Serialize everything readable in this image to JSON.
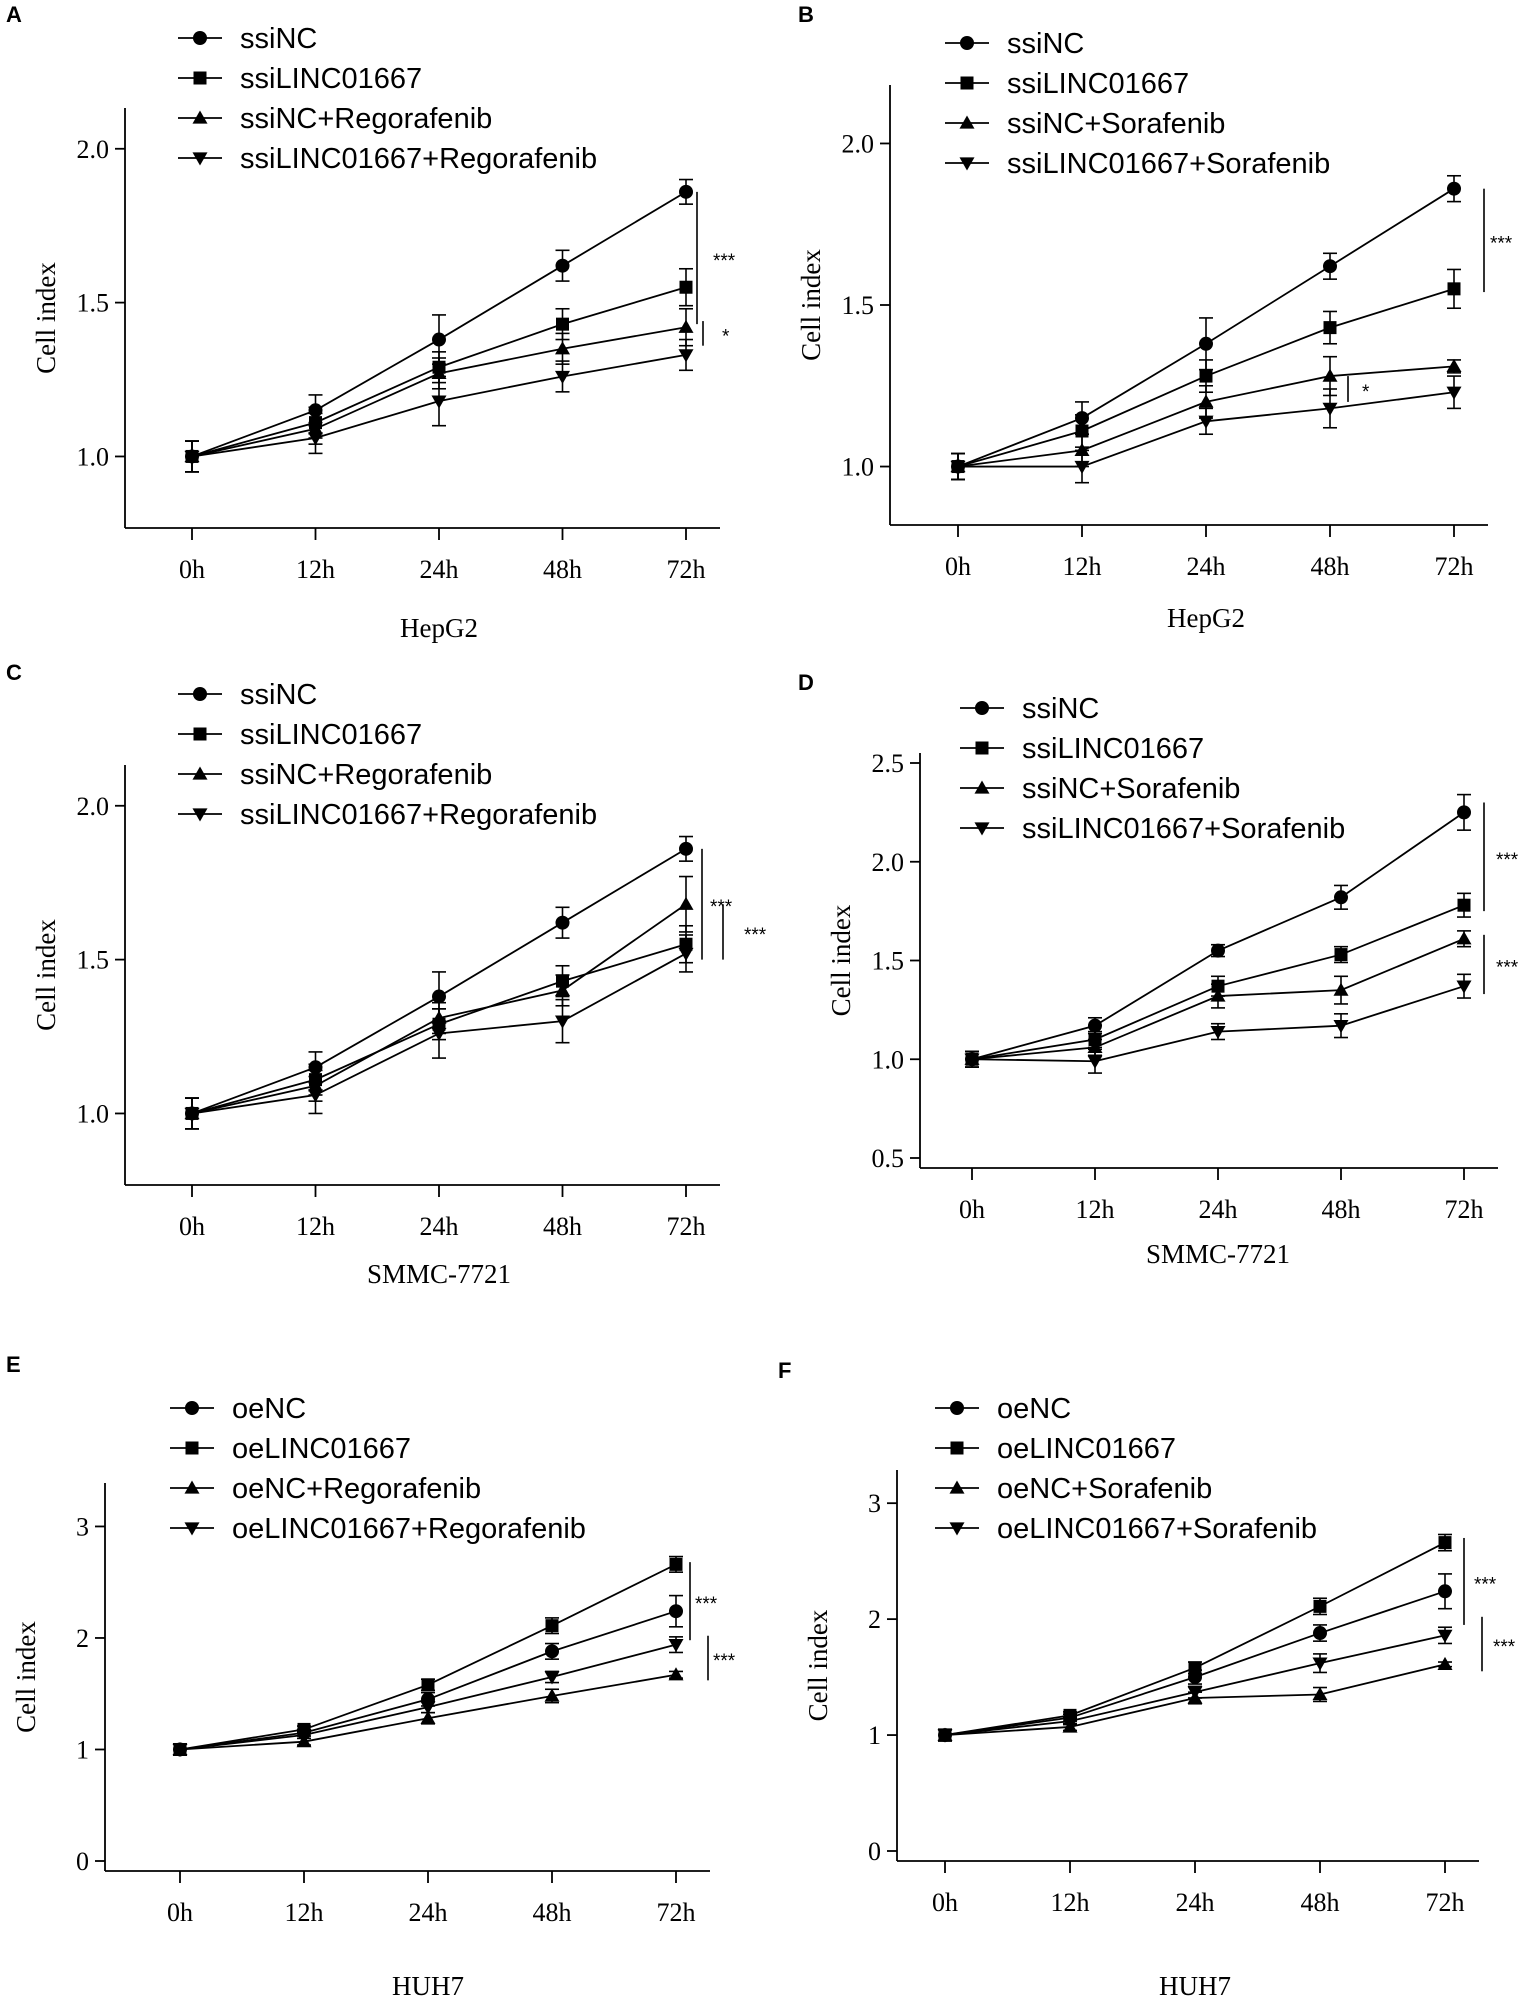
{
  "chart_data": [
    {
      "type": "line",
      "panel": "A",
      "categories": [
        "0h",
        "12h",
        "24h",
        "48h",
        "72h"
      ],
      "xlabel": "HepG2",
      "ylabel": "Cell index",
      "ylim": [
        0.8,
        2.1
      ],
      "yticks": [
        1.0,
        1.5,
        2.0
      ],
      "ytick_labels": [
        "1.0",
        "1.5",
        "2.0"
      ],
      "legend_position": "top-left",
      "series": [
        {
          "name": "ssiNC",
          "marker": "circle",
          "values": [
            1.0,
            1.15,
            1.38,
            1.62,
            1.86
          ],
          "errors": [
            0.05,
            0.05,
            0.08,
            0.05,
            0.04
          ]
        },
        {
          "name": "ssiLINC01667",
          "marker": "square",
          "values": [
            1.0,
            1.11,
            1.29,
            1.43,
            1.55
          ],
          "errors": [
            0.05,
            0.05,
            0.05,
            0.05,
            0.06
          ]
        },
        {
          "name": "ssiNC+Regorafenib",
          "marker": "triangle-up",
          "values": [
            1.0,
            1.09,
            1.27,
            1.35,
            1.42
          ],
          "errors": [
            0.05,
            0.05,
            0.05,
            0.05,
            0.06
          ]
        },
        {
          "name": "ssiLINC01667+Regorafenib",
          "marker": "triangle-down",
          "values": [
            1.0,
            1.06,
            1.18,
            1.26,
            1.33
          ],
          "errors": [
            0.05,
            0.05,
            0.08,
            0.05,
            0.05
          ]
        }
      ],
      "significance": [
        {
          "label": "***",
          "y_range": [
            1.43,
            1.86
          ]
        },
        {
          "label": "*",
          "y_range": [
            1.36,
            1.44
          ]
        }
      ]
    },
    {
      "type": "line",
      "panel": "B",
      "categories": [
        "0h",
        "12h",
        "24h",
        "48h",
        "72h"
      ],
      "xlabel": "HepG2",
      "ylabel": "Cell index",
      "ylim": [
        0.85,
        2.15
      ],
      "yticks": [
        1.0,
        1.5,
        2.0
      ],
      "ytick_labels": [
        "1.0",
        "1.5",
        "2.0"
      ],
      "legend_position": "top-left",
      "series": [
        {
          "name": "ssiNC",
          "marker": "circle",
          "values": [
            1.0,
            1.15,
            1.38,
            1.62,
            1.86
          ],
          "errors": [
            0.04,
            0.05,
            0.08,
            0.04,
            0.04
          ]
        },
        {
          "name": "ssiLINC01667",
          "marker": "square",
          "values": [
            1.0,
            1.11,
            1.28,
            1.43,
            1.55
          ],
          "errors": [
            0.04,
            0.05,
            0.05,
            0.05,
            0.06
          ]
        },
        {
          "name": "ssiNC+Sorafenib",
          "marker": "triangle-up",
          "values": [
            1.0,
            1.05,
            1.2,
            1.28,
            1.31
          ],
          "errors": [
            0.04,
            0.05,
            0.05,
            0.06,
            0.02
          ]
        },
        {
          "name": "ssiLINC01667+Sorafenib",
          "marker": "triangle-down",
          "values": [
            1.0,
            1.0,
            1.14,
            1.18,
            1.23
          ],
          "errors": [
            0.04,
            0.05,
            0.04,
            0.06,
            0.05
          ]
        }
      ],
      "significance": [
        {
          "label": "***",
          "y_range": [
            1.54,
            1.86
          ]
        },
        {
          "label": "*",
          "y_range": [
            1.2,
            1.28
          ]
        }
      ]
    },
    {
      "type": "line",
      "panel": "C",
      "categories": [
        "0h",
        "12h",
        "24h",
        "48h",
        "72h"
      ],
      "xlabel": "SMMC-7721",
      "ylabel": "Cell index",
      "ylim": [
        0.8,
        2.1
      ],
      "yticks": [
        1.0,
        1.5,
        2.0
      ],
      "ytick_labels": [
        "1.0",
        "1.5",
        "2.0"
      ],
      "legend_position": "top-left",
      "series": [
        {
          "name": "ssiNC",
          "marker": "circle",
          "values": [
            1.0,
            1.15,
            1.38,
            1.62,
            1.86
          ],
          "errors": [
            0.05,
            0.05,
            0.08,
            0.05,
            0.04
          ]
        },
        {
          "name": "ssiLINC01667",
          "marker": "square",
          "values": [
            1.0,
            1.11,
            1.29,
            1.43,
            1.55
          ],
          "errors": [
            0.05,
            0.05,
            0.05,
            0.05,
            0.06
          ]
        },
        {
          "name": "ssiNC+Regorafenib",
          "marker": "triangle-up",
          "values": [
            1.0,
            1.09,
            1.31,
            1.4,
            1.68
          ],
          "errors": [
            0.05,
            0.05,
            0.05,
            0.05,
            0.09
          ]
        },
        {
          "name": "ssiLINC01667+Regorafenib",
          "marker": "triangle-down",
          "values": [
            1.0,
            1.06,
            1.26,
            1.3,
            1.52
          ],
          "errors": [
            0.05,
            0.06,
            0.08,
            0.07,
            0.06
          ]
        }
      ],
      "significance": [
        {
          "label": "***",
          "y_range": [
            1.5,
            1.86
          ]
        },
        {
          "label": "***",
          "y_range": [
            1.5,
            1.68
          ]
        }
      ]
    },
    {
      "type": "line",
      "panel": "D",
      "categories": [
        "0h",
        "12h",
        "24h",
        "48h",
        "72h"
      ],
      "xlabel": "SMMC-7721",
      "ylabel": "Cell index",
      "ylim": [
        0.5,
        2.5
      ],
      "yticks": [
        0.5,
        1.0,
        1.5,
        2.0,
        2.5
      ],
      "ytick_labels": [
        "0.5",
        "1.0",
        "1.5",
        "2.0",
        "2.5"
      ],
      "legend_position": "top-left",
      "series": [
        {
          "name": "ssiNC",
          "marker": "circle",
          "values": [
            1.0,
            1.17,
            1.55,
            1.82,
            2.25
          ],
          "errors": [
            0.04,
            0.04,
            0.03,
            0.06,
            0.09
          ]
        },
        {
          "name": "ssiLINC01667",
          "marker": "square",
          "values": [
            1.0,
            1.1,
            1.37,
            1.53,
            1.78
          ],
          "errors": [
            0.04,
            0.04,
            0.05,
            0.04,
            0.06
          ]
        },
        {
          "name": "ssiNC+Sorafenib",
          "marker": "triangle-up",
          "values": [
            1.0,
            1.06,
            1.32,
            1.35,
            1.61
          ],
          "errors": [
            0.04,
            0.04,
            0.06,
            0.07,
            0.04
          ]
        },
        {
          "name": "ssiLINC01667+Sorafenib",
          "marker": "triangle-down",
          "values": [
            1.0,
            0.99,
            1.14,
            1.17,
            1.37
          ],
          "errors": [
            0.04,
            0.06,
            0.04,
            0.06,
            0.06
          ]
        }
      ],
      "significance": [
        {
          "label": "***",
          "y_range": [
            1.75,
            2.3
          ]
        },
        {
          "label": "***",
          "y_range": [
            1.33,
            1.63
          ]
        }
      ]
    },
    {
      "type": "line",
      "panel": "E",
      "categories": [
        "0h",
        "12h",
        "24h",
        "48h",
        "72h"
      ],
      "xlabel": "HUH7",
      "ylabel": "Cell index",
      "ylim": [
        0,
        3.3
      ],
      "yticks": [
        0,
        1,
        2,
        3
      ],
      "ytick_labels": [
        "0",
        "1",
        "2",
        "3"
      ],
      "legend_position": "top-left",
      "series": [
        {
          "name": "oeNC",
          "marker": "circle",
          "values": [
            1.0,
            1.15,
            1.45,
            1.88,
            2.24
          ],
          "errors": [
            0.05,
            0.03,
            0.06,
            0.07,
            0.14
          ]
        },
        {
          "name": "oeLINC01667",
          "marker": "square",
          "values": [
            1.0,
            1.18,
            1.58,
            2.11,
            2.66
          ],
          "errors": [
            0.05,
            0.03,
            0.05,
            0.07,
            0.07
          ]
        },
        {
          "name": "oeNC+Regorafenib",
          "marker": "triangle-up",
          "values": [
            1.0,
            1.07,
            1.28,
            1.48,
            1.67
          ],
          "errors": [
            0.05,
            0.03,
            0.05,
            0.06,
            0.03
          ]
        },
        {
          "name": "oeLINC01667+Regorafenib",
          "marker": "triangle-down",
          "values": [
            1.0,
            1.13,
            1.38,
            1.65,
            1.94
          ],
          "errors": [
            0.05,
            0.03,
            0.05,
            0.05,
            0.07
          ]
        }
      ],
      "significance": [
        {
          "label": "***",
          "y_range": [
            1.98,
            2.68
          ]
        },
        {
          "label": "***",
          "y_range": [
            1.62,
            2.02
          ]
        }
      ]
    },
    {
      "type": "line",
      "panel": "F",
      "categories": [
        "0h",
        "12h",
        "24h",
        "48h",
        "72h"
      ],
      "xlabel": "HUH7",
      "ylabel": "Cell index",
      "ylim": [
        0,
        3.2
      ],
      "yticks": [
        0,
        1,
        2,
        3
      ],
      "ytick_labels": [
        "0",
        "1",
        "2",
        "3"
      ],
      "legend_position": "top-left",
      "series": [
        {
          "name": "oeNC",
          "marker": "circle",
          "values": [
            1.0,
            1.15,
            1.5,
            1.88,
            2.24
          ],
          "errors": [
            0.05,
            0.03,
            0.06,
            0.07,
            0.15
          ]
        },
        {
          "name": "oeLINC01667",
          "marker": "square",
          "values": [
            1.0,
            1.17,
            1.58,
            2.11,
            2.66
          ],
          "errors": [
            0.05,
            0.03,
            0.05,
            0.07,
            0.07
          ]
        },
        {
          "name": "oeNC+Sorafenib",
          "marker": "triangle-up",
          "values": [
            1.0,
            1.07,
            1.32,
            1.35,
            1.61
          ],
          "errors": [
            0.05,
            0.03,
            0.05,
            0.06,
            0.02
          ]
        },
        {
          "name": "oeLINC01667+Sorafenib",
          "marker": "triangle-down",
          "values": [
            1.0,
            1.12,
            1.37,
            1.62,
            1.86
          ],
          "errors": [
            0.05,
            0.03,
            0.05,
            0.08,
            0.07
          ]
        }
      ],
      "significance": [
        {
          "label": "***",
          "y_range": [
            1.95,
            2.7
          ]
        },
        {
          "label": "***",
          "y_range": [
            1.55,
            2.02
          ]
        }
      ]
    }
  ]
}
